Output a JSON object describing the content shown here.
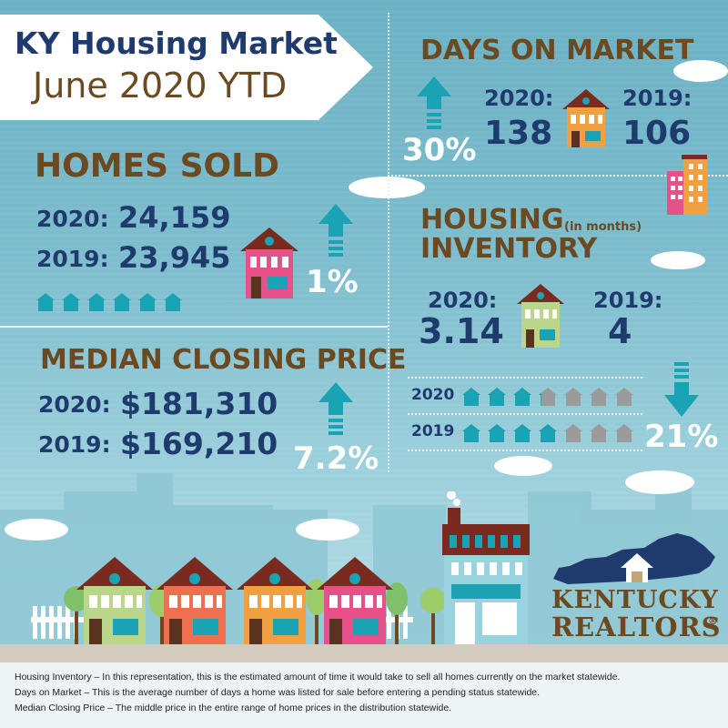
{
  "title": {
    "line1": "KY Housing Market",
    "line2": "June 2020 YTD"
  },
  "days_on_market": {
    "heading": "DAYS ON MARKET",
    "change_pct": "30%",
    "year_a_label": "2020:",
    "year_a_value": "138",
    "year_b_label": "2019:",
    "year_b_value": "106",
    "direction": "up"
  },
  "homes_sold": {
    "heading": "HOMES SOLD",
    "year_a_label": "2020:",
    "year_a_value": "24,159",
    "year_b_label": "2019:",
    "year_b_value": "23,945",
    "change_pct": "1%",
    "direction": "up"
  },
  "housing_inventory": {
    "heading_line1": "HOUSING",
    "heading_line2": "INVENTORY",
    "unit_note": "(in months)",
    "year_a_label": "2020:",
    "year_a_value": "3.14",
    "year_b_label": "2019:",
    "year_b_value": "4",
    "change_pct": "21%",
    "direction": "down",
    "rows": [
      {
        "label": "2020",
        "filled": 3.14,
        "total": 7
      },
      {
        "label": "2019",
        "filled": 4,
        "total": 7
      }
    ]
  },
  "median_closing_price": {
    "heading": "MEDIAN CLOSING PRICE",
    "year_a_label": "2020:",
    "year_a_value": "$181,310",
    "year_b_label": "2019:",
    "year_b_value": "$169,210",
    "change_pct": "7.2%",
    "direction": "up"
  },
  "logo": {
    "line1": "KENTUCKY",
    "line2": "REALTORS",
    "mark": "®"
  },
  "footnotes": [
    "Housing Inventory – In this representation, this is the estimated amount of time it would take to sell all homes currently on the market statewide.",
    "Days on Market – This is the average number of days a home was listed for sale before entering a pending status statewide.",
    "Median Closing Price – The middle price in the entire range of home prices in the distribution statewide."
  ],
  "colors": {
    "navy": "#1f3b6e",
    "brown": "#6b4a22",
    "teal": "#1aa3b5",
    "house_pink": "#e8508a",
    "house_orange": "#f0a040",
    "house_green": "#b9d68a",
    "house_coral": "#ee7050"
  }
}
